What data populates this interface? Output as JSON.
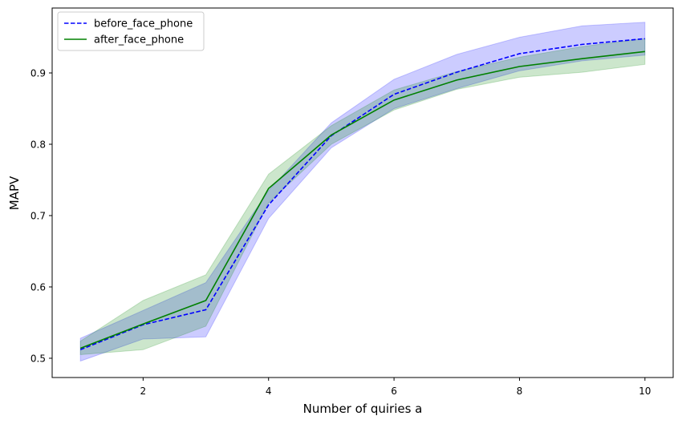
{
  "chart_data": {
    "type": "line",
    "title": "",
    "xlabel": "Number of quiries a",
    "ylabel": "MAPV",
    "xlim": [
      0.55,
      10.45
    ],
    "ylim": [
      0.473,
      0.991
    ],
    "xticks": [
      2,
      4,
      6,
      8,
      10
    ],
    "yticks": [
      0.5,
      0.6,
      0.7,
      0.8,
      0.9
    ],
    "xtick_labels": [
      "2",
      "4",
      "6",
      "8",
      "10"
    ],
    "ytick_labels": [
      "0.5",
      "0.6",
      "0.7",
      "0.8",
      "0.9"
    ],
    "grid": false,
    "legend_position": "upper-left",
    "x": [
      1,
      2,
      3,
      4,
      5,
      6,
      7,
      8,
      9,
      10
    ],
    "series": [
      {
        "name": "before_face_phone",
        "color": "#0000ff",
        "line_style": "dashed",
        "values": [
          0.512,
          0.547,
          0.568,
          0.715,
          0.812,
          0.87,
          0.901,
          0.927,
          0.94,
          0.948
        ],
        "band_low": [
          0.496,
          0.527,
          0.53,
          0.696,
          0.795,
          0.85,
          0.878,
          0.903,
          0.917,
          0.925
        ],
        "band_high": [
          0.528,
          0.567,
          0.606,
          0.735,
          0.83,
          0.891,
          0.926,
          0.95,
          0.966,
          0.971
        ]
      },
      {
        "name": "after_face_phone",
        "color": "#008000",
        "line_style": "solid",
        "values": [
          0.514,
          0.548,
          0.581,
          0.738,
          0.813,
          0.862,
          0.89,
          0.909,
          0.92,
          0.93
        ],
        "band_low": [
          0.505,
          0.512,
          0.545,
          0.718,
          0.8,
          0.848,
          0.877,
          0.894,
          0.901,
          0.912
        ],
        "band_high": [
          0.524,
          0.581,
          0.617,
          0.758,
          0.826,
          0.876,
          0.902,
          0.922,
          0.937,
          0.948
        ]
      }
    ]
  }
}
